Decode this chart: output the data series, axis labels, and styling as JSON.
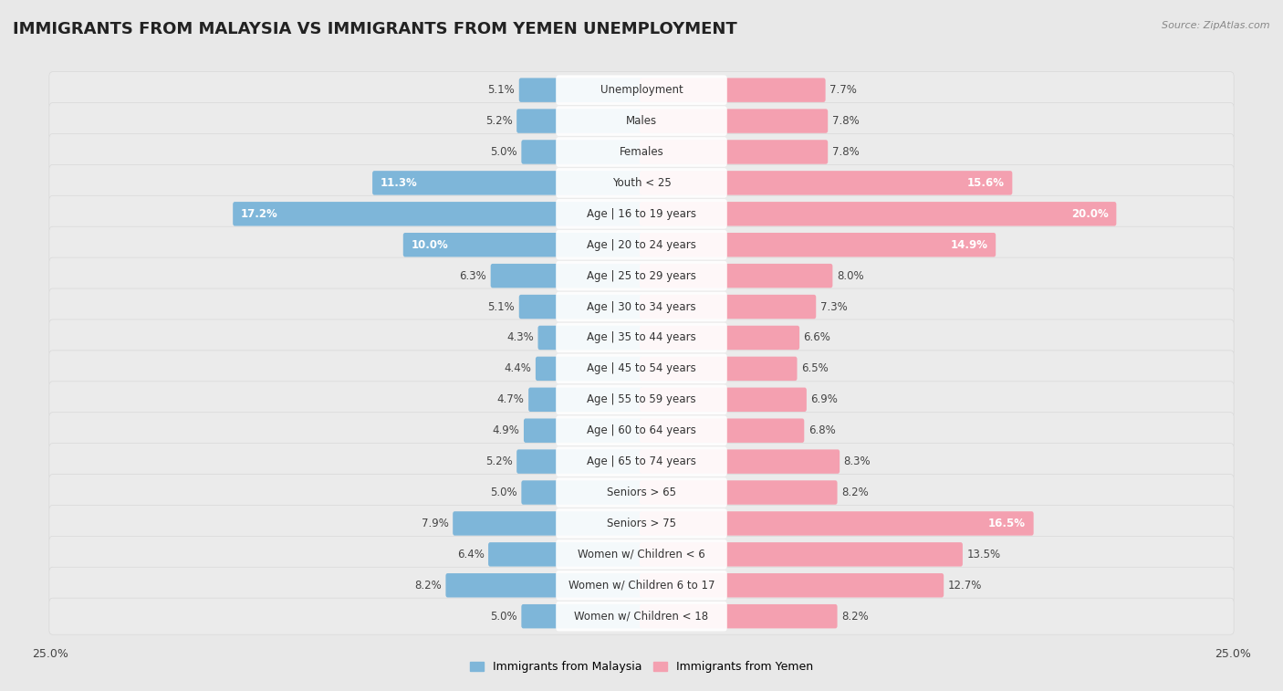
{
  "title": "IMMIGRANTS FROM MALAYSIA VS IMMIGRANTS FROM YEMEN UNEMPLOYMENT",
  "source": "Source: ZipAtlas.com",
  "categories": [
    "Unemployment",
    "Males",
    "Females",
    "Youth < 25",
    "Age | 16 to 19 years",
    "Age | 20 to 24 years",
    "Age | 25 to 29 years",
    "Age | 30 to 34 years",
    "Age | 35 to 44 years",
    "Age | 45 to 54 years",
    "Age | 55 to 59 years",
    "Age | 60 to 64 years",
    "Age | 65 to 74 years",
    "Seniors > 65",
    "Seniors > 75",
    "Women w/ Children < 6",
    "Women w/ Children 6 to 17",
    "Women w/ Children < 18"
  ],
  "malaysia_values": [
    5.1,
    5.2,
    5.0,
    11.3,
    17.2,
    10.0,
    6.3,
    5.1,
    4.3,
    4.4,
    4.7,
    4.9,
    5.2,
    5.0,
    7.9,
    6.4,
    8.2,
    5.0
  ],
  "yemen_values": [
    7.7,
    7.8,
    7.8,
    15.6,
    20.0,
    14.9,
    8.0,
    7.3,
    6.6,
    6.5,
    6.9,
    6.8,
    8.3,
    8.2,
    16.5,
    13.5,
    12.7,
    8.2
  ],
  "malaysia_color": "#7eb6d9",
  "yemen_color": "#f4a0b0",
  "malaysia_label": "Immigrants from Malaysia",
  "yemen_label": "Immigrants from Yemen",
  "xlim": 25.0,
  "background_color": "#e8e8e8",
  "row_bg_color": "#f2f2f2",
  "row_border_color": "#d0d0d0",
  "bar_bg_color": "#e0e0e0",
  "title_fontsize": 13,
  "label_fontsize": 8.5,
  "value_fontsize": 8.5
}
